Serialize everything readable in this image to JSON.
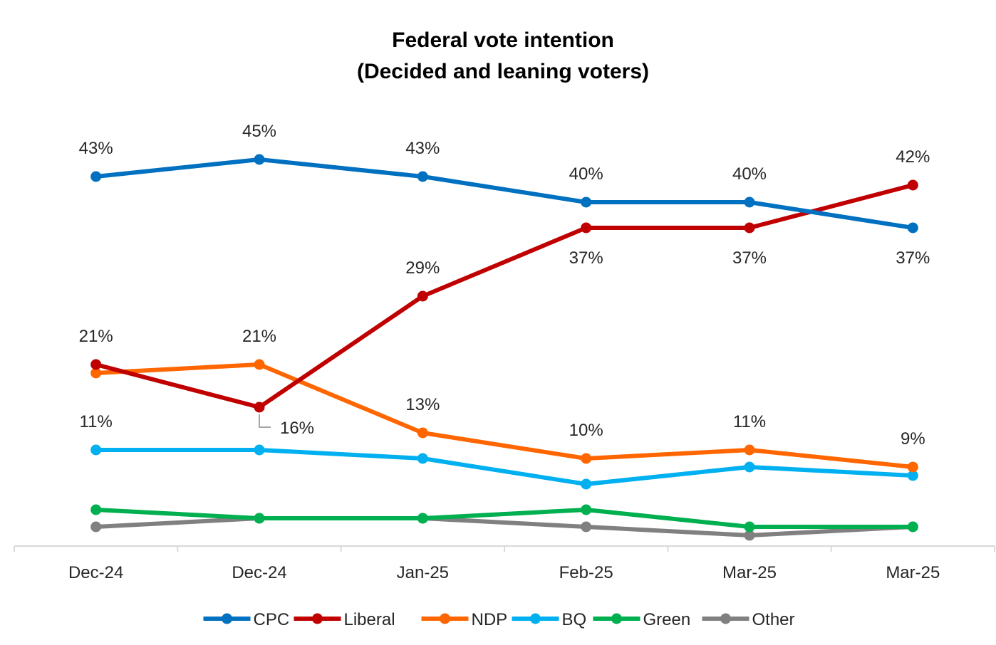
{
  "chart_data": {
    "type": "line",
    "title": "Federal vote intention",
    "subtitle": "(Decided and leaning voters)",
    "xlabel": "",
    "ylabel": "",
    "categories": [
      "Dec-24",
      "Dec-24",
      "Jan-25",
      "Feb-25",
      "Mar-25",
      "Mar-25"
    ],
    "ylim": [
      0,
      50
    ],
    "grid": false,
    "legend_position": "bottom",
    "value_suffix": "%",
    "series": [
      {
        "name": "CPC",
        "color": "#0070C0",
        "values": [
          43,
          45,
          43,
          40,
          40,
          37
        ],
        "labels": [
          "43%",
          "45%",
          "43%",
          "40%",
          "40%",
          "37%"
        ],
        "label_pos": [
          "above",
          "above",
          "above",
          "above",
          "above",
          "below"
        ]
      },
      {
        "name": "Liberal",
        "color": "#C00000",
        "values": [
          21,
          16,
          29,
          37,
          37,
          42
        ],
        "labels": [
          "21%",
          "16%",
          "29%",
          "37%",
          "37%",
          "42%"
        ],
        "label_pos": [
          "above",
          "callout",
          "above",
          "below",
          "below",
          "above"
        ]
      },
      {
        "name": "NDP",
        "color": "#FF6600",
        "values": [
          20,
          21,
          13,
          10,
          11,
          9
        ],
        "labels": [
          null,
          "21%",
          "13%",
          "10%",
          "11%",
          "9%"
        ],
        "label_pos": [
          null,
          "above",
          "above",
          "above",
          "above",
          "above"
        ]
      },
      {
        "name": "BQ",
        "color": "#00B0F0",
        "values": [
          11,
          11,
          10,
          7,
          9,
          8
        ],
        "labels": [
          "11%",
          null,
          null,
          null,
          null,
          null
        ],
        "label_pos": [
          "above",
          null,
          null,
          null,
          null,
          null
        ]
      },
      {
        "name": "Green",
        "color": "#00B050",
        "values": [
          4,
          3,
          3,
          4,
          2,
          2
        ],
        "labels": [
          null,
          null,
          null,
          null,
          null,
          null
        ],
        "label_pos": [
          null,
          null,
          null,
          null,
          null,
          null
        ]
      },
      {
        "name": "Other",
        "color": "#808080",
        "values": [
          2,
          3,
          3,
          2,
          1,
          2
        ],
        "labels": [
          null,
          null,
          null,
          null,
          null,
          null
        ],
        "label_pos": [
          null,
          null,
          null,
          null,
          null,
          null
        ]
      }
    ]
  }
}
